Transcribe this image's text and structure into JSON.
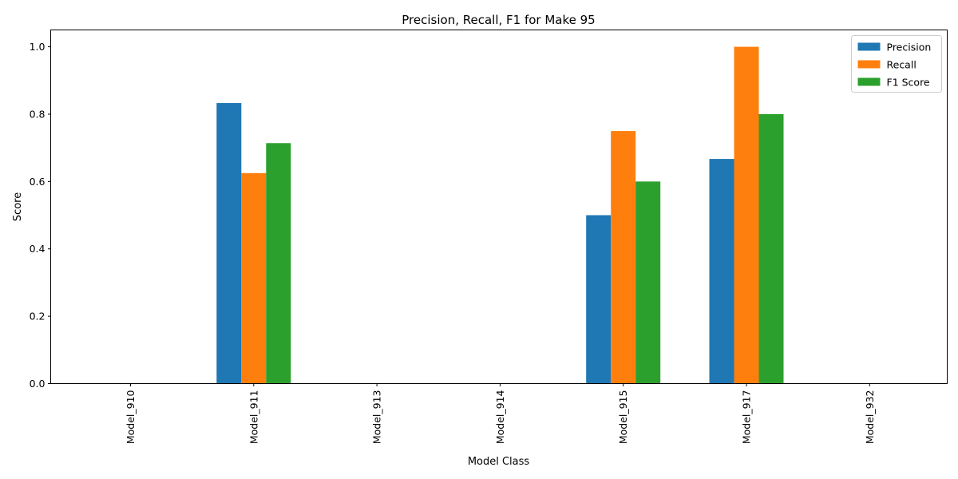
{
  "chart_data": {
    "type": "bar",
    "title": "Precision, Recall, F1 for Make 95",
    "xlabel": "Model Class",
    "ylabel": "Score",
    "categories": [
      "Model_910",
      "Model_911",
      "Model_913",
      "Model_914",
      "Model_915",
      "Model_917",
      "Model_932"
    ],
    "series": [
      {
        "name": "Precision",
        "color": "#1f77b4",
        "values": [
          0.0,
          0.833,
          0.0,
          0.0,
          0.5,
          0.667,
          0.0
        ]
      },
      {
        "name": "Recall",
        "color": "#ff7f0e",
        "values": [
          0.0,
          0.625,
          0.0,
          0.0,
          0.75,
          1.0,
          0.0
        ]
      },
      {
        "name": "F1 Score",
        "color": "#2ca02c",
        "values": [
          0.0,
          0.714,
          0.0,
          0.0,
          0.6,
          0.8,
          0.0
        ]
      }
    ],
    "ylim": [
      0,
      1.05
    ],
    "yticks": [
      "0.0",
      "0.2",
      "0.4",
      "0.6",
      "0.8",
      "1.0"
    ],
    "legend": "top-right",
    "grid": false
  }
}
